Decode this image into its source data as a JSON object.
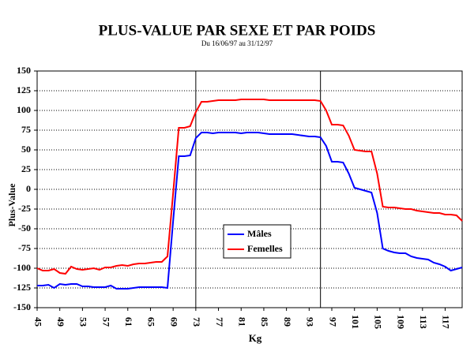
{
  "chart_data": {
    "type": "line",
    "title": "PLUS-VALUE PAR SEXE ET PAR POIDS",
    "subtitle": "Du 16/06/97 au 31/12/97",
    "x_label": "Kg",
    "y_label": "Plus-Value",
    "x": [
      45,
      46,
      47,
      48,
      49,
      50,
      51,
      52,
      53,
      54,
      55,
      56,
      57,
      58,
      59,
      60,
      61,
      62,
      63,
      64,
      65,
      66,
      67,
      68,
      69,
      70,
      71,
      72,
      73,
      74,
      75,
      76,
      77,
      78,
      79,
      80,
      81,
      82,
      83,
      84,
      85,
      86,
      87,
      88,
      89,
      90,
      91,
      92,
      93,
      94,
      95,
      96,
      97,
      98,
      99,
      100,
      101,
      102,
      103,
      104,
      105,
      106,
      107,
      108,
      109,
      110,
      111,
      112,
      113,
      114,
      115,
      116,
      117,
      118,
      119,
      120
    ],
    "series": [
      {
        "name": "Mâles",
        "color": "#0000ff",
        "values": [
          -122,
          -122,
          -121,
          -125,
          -120,
          -121,
          -120,
          -120,
          -123,
          -123,
          -124,
          -124,
          -124,
          -122,
          -126,
          -126,
          -126,
          -125,
          -124,
          -124,
          -124,
          -124,
          -124,
          -125,
          -40,
          42,
          42,
          43,
          65,
          72,
          72,
          71,
          72,
          72,
          72,
          72,
          71,
          72,
          72,
          72,
          71,
          70,
          70,
          70,
          70,
          70,
          69,
          68,
          67,
          67,
          66,
          55,
          35,
          35,
          34,
          20,
          2,
          0,
          -2,
          -4,
          -30,
          -75,
          -78,
          -80,
          -81,
          -81,
          -85,
          -87,
          -88,
          -89,
          -93,
          -95,
          -98,
          -103,
          -101,
          -99
        ]
      },
      {
        "name": "Femelles",
        "color": "#ff0000",
        "values": [
          -100,
          -103,
          -103,
          -101,
          -106,
          -107,
          -98,
          -101,
          -102,
          -101,
          -100,
          -102,
          -99,
          -99,
          -97,
          -96,
          -97,
          -95,
          -94,
          -94,
          -93,
          -92,
          -92,
          -85,
          -5,
          78,
          78,
          80,
          98,
          111,
          111,
          112,
          113,
          113,
          113,
          113,
          114,
          114,
          114,
          114,
          114,
          113,
          113,
          113,
          113,
          113,
          113,
          113,
          113,
          113,
          112,
          100,
          82,
          82,
          81,
          68,
          50,
          49,
          48,
          48,
          20,
          -22,
          -23,
          -23,
          -24,
          -25,
          -25,
          -27,
          -28,
          -29,
          -30,
          -30,
          -32,
          -32,
          -33,
          -40
        ]
      }
    ],
    "xlim": [
      45,
      120
    ],
    "xticks": [
      45,
      49,
      53,
      57,
      61,
      65,
      69,
      73,
      77,
      81,
      85,
      89,
      93,
      97,
      101,
      105,
      109,
      113,
      117
    ],
    "ylim": [
      -150,
      150
    ],
    "yticks": [
      -150,
      -125,
      -100,
      -75,
      -50,
      -25,
      0,
      25,
      50,
      75,
      100,
      125,
      150
    ],
    "x_reference_lines": [
      73,
      95
    ],
    "grid": true
  }
}
